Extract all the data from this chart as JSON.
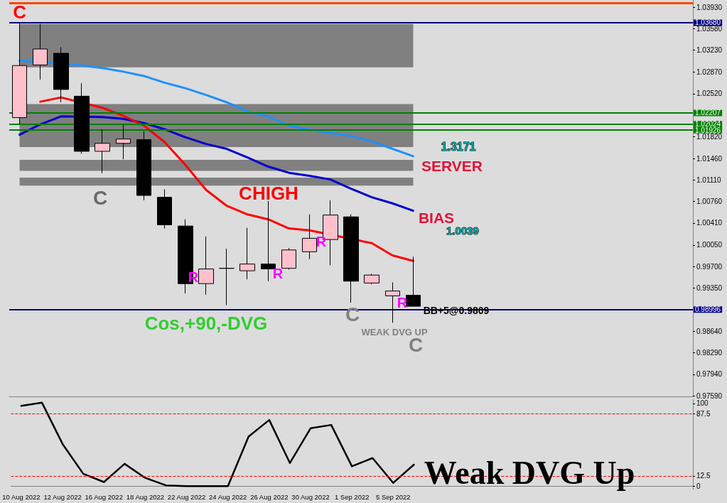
{
  "chart_data": [
    {
      "type": "candlestick",
      "categories": [
        "10 Aug 2022",
        null,
        "12 Aug 2022",
        null,
        "16 Aug 2022",
        null,
        "18 Aug 2022",
        null,
        "22 Aug 2022",
        null,
        "24 Aug 2022",
        null,
        "26 Aug 2022",
        null,
        "30 Aug 2022",
        null,
        "1 Sep 2022",
        null,
        "5 Sep 2022",
        null,
        null,
        null,
        null,
        null,
        null,
        null,
        null,
        null,
        null,
        null,
        null,
        null,
        null
      ],
      "ohlc": [
        [
          1.0213,
          1.0367,
          1.0202,
          1.0298
        ],
        [
          1.0299,
          1.0366,
          1.0275,
          1.0325
        ],
        [
          1.0318,
          1.0328,
          1.0238,
          1.0259
        ],
        [
          1.0248,
          1.0269,
          1.0154,
          1.0158
        ],
        [
          1.0158,
          1.0194,
          1.0122,
          1.0171
        ],
        [
          1.0171,
          1.0202,
          1.0145,
          1.0178
        ],
        [
          1.0177,
          1.0191,
          1.0078,
          1.0086
        ],
        [
          1.0083,
          1.0096,
          1.0032,
          1.0038
        ],
        [
          1.0036,
          1.0047,
          0.9926,
          0.9942
        ],
        [
          0.9942,
          1.0019,
          0.9924,
          0.9966
        ],
        [
          0.9967,
          0.9999,
          0.9907,
          0.9967
        ],
        [
          0.9963,
          1.0033,
          0.9949,
          0.9974
        ],
        [
          0.9974,
          1.0077,
          0.9946,
          0.9966
        ],
        [
          0.9967,
          1.0,
          0.9965,
          0.9997
        ],
        [
          0.9994,
          1.0055,
          0.9982,
          1.0016
        ],
        [
          1.0014,
          1.0078,
          0.9972,
          1.0054
        ],
        [
          1.0051,
          1.0055,
          0.9911,
          0.9946
        ],
        [
          0.9943,
          0.9958,
          0.9941,
          0.9956
        ],
        [
          0.9922,
          0.9944,
          0.9878,
          0.993
        ],
        [
          0.9923,
          0.9986,
          0.9905,
          0.9905
        ],
        null,
        null,
        null,
        null,
        null,
        null,
        null,
        null,
        null,
        null,
        null,
        null,
        null
      ],
      "colors": [
        "#ffc0cb",
        "#ffc0cb",
        "#000000",
        "#000000",
        "#ffc0cb",
        "#ffc0cb",
        "#000000",
        "#000000",
        "#000000",
        "#ffc0cb",
        "#000000",
        "#ffc0cb",
        "#000000",
        "#ffc0cb",
        "#ffc0cb",
        "#ffc0cb",
        "#000000",
        "#ffc0cb",
        "#ffc0cb",
        "#000000",
        null,
        null,
        null,
        null,
        null,
        null,
        null,
        null,
        null,
        null,
        null,
        null,
        null
      ],
      "series": [
        {
          "type": "line",
          "color": "#1e90ff",
          "values": [
            1.0306,
            null,
            null,
            1.0298,
            1.0294,
            1.0288,
            1.0281,
            1.027,
            1.0261,
            1.025,
            1.0238,
            1.0223,
            1.0215,
            1.02,
            1.0193,
            1.0188,
            1.0183,
            1.0174,
            1.0162,
            1.015,
            null,
            null,
            null,
            null,
            null,
            null,
            null,
            null,
            null,
            null,
            null,
            null,
            null
          ]
        },
        {
          "type": "line",
          "color": "#0000cd",
          "values": [
            1.0185,
            1.0202,
            1.0215,
            null,
            1.0214,
            1.0211,
            1.0204,
            1.0194,
            1.0181,
            1.017,
            1.0162,
            1.0148,
            1.0133,
            1.0123,
            1.0118,
            1.0112,
            1.0097,
            1.0083,
            1.0073,
            1.0061,
            null,
            null,
            null,
            null,
            null,
            null,
            null,
            null,
            null,
            null,
            null,
            null,
            null
          ]
        },
        {
          "type": "line",
          "color": "#ff0000",
          "values": [
            null,
            1.0239,
            1.0246,
            null,
            1.0229,
            1.0216,
            1.02,
            1.0173,
            1.0136,
            1.0095,
            1.0069,
            1.0055,
            1.0047,
            1.0032,
            1.0029,
            null,
            null,
            1.0008,
            0.9988,
            0.9979,
            null,
            null,
            null,
            null,
            null,
            null,
            null,
            null,
            null,
            null,
            null,
            null,
            null
          ]
        }
      ],
      "ylim": [
        0.9757,
        1.0405
      ],
      "yticks": [
        {
          "value": 1.0393,
          "label": "1.03930"
        },
        {
          "value": 1.0358,
          "label": "1.03580"
        },
        {
          "value": 1.0323,
          "label": "1.03230"
        },
        {
          "value": 1.0287,
          "label": "1.02870"
        },
        {
          "value": 1.0252,
          "label": "1.02520"
        },
        {
          "value": 1.0182,
          "label": "1.01820"
        },
        {
          "value": 1.0146,
          "label": "1.01460"
        },
        {
          "value": 1.0111,
          "label": "1.01110"
        },
        {
          "value": 1.0076,
          "label": "1.00760"
        },
        {
          "value": 1.0041,
          "label": "1.00410"
        },
        {
          "value": 1.0005,
          "label": "1.00050"
        },
        {
          "value": 0.997,
          "label": "0.99700"
        },
        {
          "value": 0.9935,
          "label": "0.99350"
        },
        {
          "value": 0.9864,
          "label": "0.98640"
        },
        {
          "value": 0.9829,
          "label": "0.98290"
        },
        {
          "value": 0.9794,
          "label": "0.97940"
        },
        {
          "value": 0.9759,
          "label": "0.97590"
        }
      ],
      "ref_lines": [
        {
          "axis": "y",
          "value": 1.04,
          "label": null,
          "color": "#ff4500"
        },
        {
          "axis": "y",
          "value": 1.0368,
          "label": "1.03680",
          "color": "#000080"
        },
        {
          "axis": "y",
          "value": 1.02207,
          "label": "1.02207",
          "color": "#008000"
        },
        {
          "axis": "y",
          "value": 1.02024,
          "label": "1.02024",
          "color": "#008000"
        },
        {
          "axis": "y",
          "value": 1.01926,
          "label": "1.01926",
          "color": "#008000"
        },
        {
          "axis": "y",
          "value": 0.98996,
          "label": "0.98996",
          "color": "#000080"
        }
      ],
      "bands": [
        {
          "axis": "y",
          "from": 1.0295,
          "to": 1.0366,
          "label": null,
          "color": "#808080"
        },
        {
          "axis": "y",
          "from": 1.0165,
          "to": 1.0235,
          "label": null,
          "color": "#808080"
        },
        {
          "axis": "y",
          "from": 1.0126,
          "to": 1.0144,
          "label": null,
          "color": "#808080"
        },
        {
          "axis": "y",
          "from": 1.0102,
          "to": 1.0115,
          "label": null,
          "color": "#808080"
        }
      ],
      "annotations": [
        {
          "text": "C",
          "x": "10 Aug 2022",
          "y": 1.0367
        },
        "C",
        "CHIGH",
        "1.3171",
        "SERVER",
        "BIAS",
        "1.0039",
        "R",
        "R",
        "R",
        "R",
        "C",
        "C",
        "BB+5@0.9809",
        "Cos,+90,-DVG",
        "WEAK DVG UP"
      ],
      "marker": "none",
      "tick_labels": "y"
    },
    {
      "type": "line",
      "categories": [
        "10 Aug 2022",
        null,
        "12 Aug 2022",
        null,
        "16 Aug 2022",
        null,
        "18 Aug 2022",
        null,
        "22 Aug 2022",
        null,
        "24 Aug 2022",
        null,
        "26 Aug 2022",
        null,
        "30 Aug 2022",
        null,
        "1 Sep 2022",
        null,
        "5 Sep 2022",
        null,
        null,
        null,
        null,
        null,
        null,
        null,
        null,
        null,
        null,
        null,
        null,
        null,
        null
      ],
      "series": [
        {
          "color": "#000000",
          "values": [
            97,
            101,
            51,
            15,
            5,
            27,
            10,
            1,
            0,
            0,
            0,
            60,
            80,
            28,
            70,
            74,
            24,
            34,
            4,
            26,
            null,
            null,
            null,
            null,
            null,
            null,
            null,
            null,
            null,
            null,
            null,
            null,
            null
          ]
        }
      ],
      "ylim": [
        -4,
        105
      ],
      "yticks": [
        0,
        12.5,
        87.5,
        100
      ],
      "ref_lines": [
        {
          "axis": "y",
          "value": 87.5,
          "label": null,
          "color": "#ff0000",
          "line_style": "dashed"
        },
        {
          "axis": "y",
          "value": 12.5,
          "label": null,
          "color": "#ff0000",
          "line_style": "dashed"
        }
      ],
      "annotations": [
        "Weak DVG Up"
      ],
      "marker": "none"
    }
  ]
}
